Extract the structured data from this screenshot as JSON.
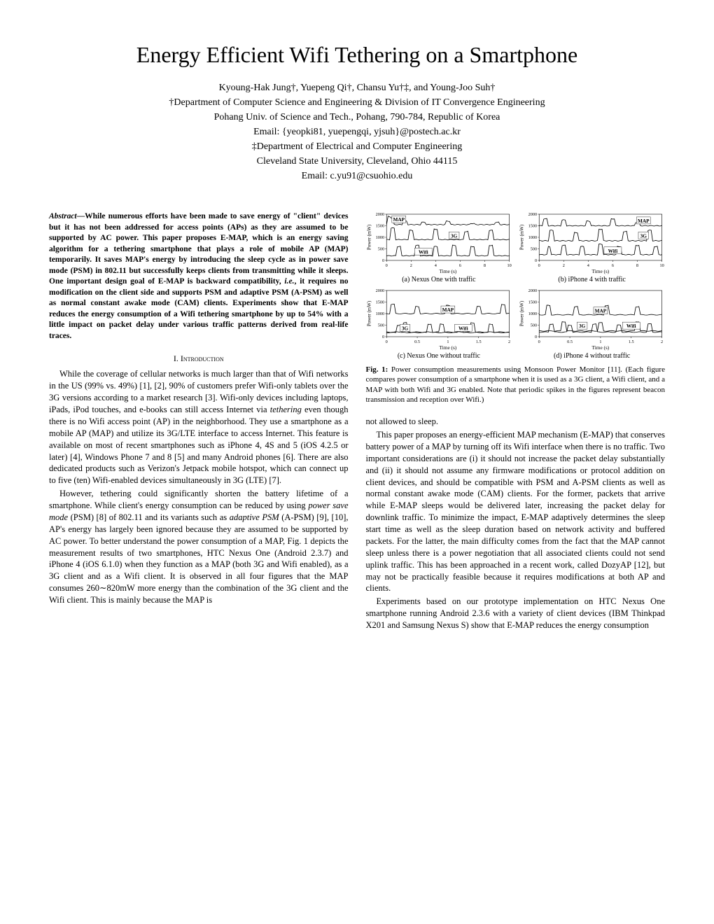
{
  "title": "Energy Efficient Wifi Tethering on a Smartphone",
  "authors_line1": "Kyoung-Hak Jung†, Yuepeng Qi†, Chansu Yu†‡, and Young-Joo Suh†",
  "authors_line2": "†Department of Computer Science and Engineering & Division of IT Convergence Engineering",
  "authors_line3": "Pohang Univ. of Science and Tech., Pohang, 790-784, Republic of Korea",
  "authors_line4": "Email: {yeopki81, yuepengqi, yjsuh}@postech.ac.kr",
  "authors_line5": "‡Department of Electrical and Computer Engineering",
  "authors_line6": "Cleveland State University, Cleveland, Ohio 44115",
  "authors_line7": "Email: c.yu91@csuohio.edu",
  "abstract_lead": "Abstract",
  "abstract_body": "—While numerous efforts have been made to save energy of \"client\" devices but it has not been addressed for access points (APs) as they are assumed to be supported by AC power. This paper proposes E-MAP, which is an energy saving algorithm for a tethering smartphone that plays a role of mobile AP (MAP) temporarily. It saves MAP's energy by introducing the sleep cycle as in power save mode (PSM) in 802.11 but successfully keeps clients from transmitting while it sleeps. One important design goal of E-MAP is backward compatibility, ",
  "abstract_ital": "i.e.",
  "abstract_body2": ", it requires no modification on the client side and supports PSM and adaptive PSM (A-PSM) as well as normal constant awake mode (CAM) clients. Experiments show that E-MAP reduces the energy consumption of a Wifi tethering smartphone by up to 54% with a little impact on packet delay under various traffic patterns derived from real-life traces.",
  "section1": "I. Introduction",
  "intro_p1a": "While the coverage of cellular networks is much larger than that of Wifi networks in the US (99% vs. 49%) [1], [2], 90% of customers prefer Wifi-only tablets over the 3G versions according to a market research [3]. Wifi-only devices including laptops, iPads, iPod touches, and e-books can still access Internet via ",
  "intro_p1_ital": "tethering",
  "intro_p1b": " even though there is no Wifi access point (AP) in the neighborhood. They use a smartphone as a mobile AP (MAP) and utilize its 3G/LTE interface to access Internet. This feature is available on most of recent smartphones such as iPhone 4, 4S and 5 (iOS 4.2.5 or later) [4], Windows Phone 7 and 8 [5] and many Android phones [6]. There are also dedicated products such as Verizon's Jetpack mobile hotspot, which can connect up to five (ten) Wifi-enabled devices simultaneously in 3G (LTE) [7].",
  "intro_p2a": "However, tethering could significantly shorten the battery lifetime of a smartphone. While client's energy consumption can be reduced by using ",
  "intro_p2_ital1": "power save mode",
  "intro_p2b": " (PSM) [8] of 802.11 and its variants such as ",
  "intro_p2_ital2": "adaptive PSM",
  "intro_p2c": " (A-PSM) [9], [10], AP's energy has largely been ignored because they are assumed to be supported by AC power. To better understand the power consumption of a MAP, Fig. 1 depicts the measurement results of two smartphones, HTC Nexus One (Android 2.3.7) and iPhone 4 (iOS 6.1.0) when they function as a MAP (both 3G and Wifi enabled), as a 3G client and as a Wifi client. It is observed in all four figures that the MAP consumes 260∼820mW more energy than the combination of the 3G client and the Wifi client. This is mainly because the MAP is",
  "col2_p0": "not allowed to sleep.",
  "col2_p1": "This paper proposes an energy-efficient MAP mechanism (E-MAP) that conserves battery power of a MAP by turning off its Wifi interface when there is no traffic. Two important considerations are (i) it should not increase the packet delay substantially and (ii) it should not assume any firmware modifications or protocol addition on client devices, and should be compatible with PSM and A-PSM clients as well as normal constant awake mode (CAM) clients. For the former, packets that arrive while E-MAP sleeps would be delivered later, increasing the packet delay for downlink traffic. To minimize the impact, E-MAP adaptively determines the sleep start time as well as the sleep duration based on network activity and buffered packets. For the latter, the main difficulty comes from the fact that the MAP cannot sleep unless there is a power negotiation that all associated clients could not send uplink traffic. This has been approached in a recent work, called DozyAP [12], but may not be practically feasible because it requires modifications at both AP and clients.",
  "col2_p2": "Experiments based on our prototype implementation on HTC Nexus One smartphone running Android 2.3.6 with a variety of client devices (IBM Thinkpad X201 and Samsung Nexus S) show that E-MAP reduces the energy consumption",
  "fig1_caption_bold": "Fig. 1:",
  "fig1_caption": " Power consumption measurements using Monsoon Power Monitor [11]. (Each figure compares power consumption of a smartphone when it is used as a 3G client, a Wifi client, and a MAP with both Wifi and 3G enabled. Note that periodic spikes in the figures represent beacon transmission and reception over Wifi.)",
  "subfigs": {
    "a": {
      "caption": "(a) Nexus One with traffic",
      "xlabel": "Time (s)",
      "ylabel": "Power (mW)",
      "xlim": [
        0,
        10
      ],
      "xticks": [
        0,
        2,
        4,
        6,
        8,
        10
      ],
      "ylim": [
        0,
        2000
      ],
      "yticks": [
        0,
        500,
        1000,
        1500,
        2000
      ],
      "labels": {
        "MAP": [
          1.0,
          1750
        ],
        "3G": [
          5.5,
          1050
        ],
        "Wifi": [
          3.0,
          350
        ]
      },
      "series": {
        "MAP": {
          "base": 1550,
          "spikes": [
            [
              0.2,
              1900
            ],
            [
              0.4,
              1850
            ],
            [
              1.5,
              1700
            ],
            [
              3.0,
              1650
            ],
            [
              5.0,
              1700
            ],
            [
              7.0,
              1600
            ],
            [
              9.0,
              1650
            ]
          ]
        },
        "3G": {
          "base": 900,
          "spikes": [
            [
              0.5,
              1400
            ],
            [
              2.0,
              1300
            ],
            [
              4.0,
              1350
            ],
            [
              6.5,
              1250
            ],
            [
              8.5,
              1300
            ]
          ]
        },
        "Wifi": {
          "base": 200,
          "spikes": [
            [
              1.0,
              600
            ],
            [
              2.5,
              650
            ],
            [
              4.0,
              600
            ],
            [
              5.5,
              650
            ],
            [
              7.0,
              600
            ],
            [
              8.5,
              650
            ]
          ]
        }
      }
    },
    "b": {
      "caption": "(b) iPhone 4 with traffic",
      "xlabel": "Time (s)",
      "ylabel": "Power (mW)",
      "xlim": [
        0,
        10
      ],
      "xticks": [
        0,
        2,
        4,
        6,
        8,
        10
      ],
      "ylim": [
        0,
        2000
      ],
      "yticks": [
        0,
        500,
        1000,
        1500,
        2000
      ],
      "labels": {
        "MAP": [
          8.5,
          1700
        ],
        "3G": [
          8.5,
          1050
        ],
        "Wifi": [
          6.0,
          400
        ]
      },
      "series": {
        "MAP": {
          "base": 1500,
          "spikes": [
            [
              0.5,
              1800
            ],
            [
              2.0,
              1750
            ],
            [
              4.0,
              1700
            ],
            [
              6.0,
              1800
            ],
            [
              8.0,
              1650
            ]
          ]
        },
        "3G": {
          "base": 850,
          "spikes": [
            [
              1.0,
              1300
            ],
            [
              3.0,
              1200
            ],
            [
              5.0,
              1350
            ],
            [
              7.0,
              1250
            ],
            [
              9.0,
              1300
            ]
          ]
        },
        "Wifi": {
          "base": 250,
          "spikes": [
            [
              0.8,
              600
            ],
            [
              2.0,
              650
            ],
            [
              3.5,
              600
            ],
            [
              5.0,
              700
            ],
            [
              6.5,
              600
            ],
            [
              8.0,
              650
            ],
            [
              9.5,
              600
            ]
          ]
        }
      }
    },
    "c": {
      "caption": "(c) Nexus One without traffic",
      "xlabel": "Time (s)",
      "ylabel": "Power (mW)",
      "xlim": [
        0.0,
        2.0
      ],
      "xticks": [
        0.0,
        0.5,
        1.0,
        1.5,
        2.0
      ],
      "ylim": [
        0,
        2000
      ],
      "yticks": [
        0,
        500,
        1000,
        1500,
        2000
      ],
      "labels": {
        "MAP": [
          1.0,
          1150
        ],
        "3G": [
          0.3,
          350
        ],
        "Wifi": [
          1.25,
          350
        ]
      },
      "series": {
        "MAP": {
          "base": 1000,
          "spikes": [
            [
              0.1,
              1400
            ],
            [
              0.5,
              1300
            ],
            [
              1.0,
              1350
            ],
            [
              1.5,
              1300
            ],
            [
              1.9,
              1400
            ]
          ]
        },
        "3G": {
          "base": 200,
          "spikes": [
            [
              0.3,
              600
            ],
            [
              0.9,
              550
            ],
            [
              1.4,
              600
            ]
          ]
        },
        "Wifi": {
          "base": 180,
          "spikes": [
            [
              0.2,
              500
            ],
            [
              0.7,
              550
            ],
            [
              1.2,
              500
            ],
            [
              1.7,
              550
            ]
          ]
        }
      }
    },
    "d": {
      "caption": "(d) iPhone 4 without traffic",
      "xlabel": "Time (s)",
      "ylabel": "Power (mW)",
      "xlim": [
        0.0,
        2.0
      ],
      "xticks": [
        0.0,
        0.5,
        1.0,
        1.5,
        2.0
      ],
      "ylim": [
        0,
        2000
      ],
      "yticks": [
        0,
        500,
        1000,
        1500,
        2000
      ],
      "labels": {
        "MAP": [
          1.0,
          1100
        ],
        "3G": [
          0.7,
          450
        ],
        "Wifi": [
          1.5,
          450
        ]
      },
      "series": {
        "MAP": {
          "base": 950,
          "spikes": [
            [
              0.15,
              1350
            ],
            [
              0.6,
              1300
            ],
            [
              1.1,
              1350
            ],
            [
              1.6,
              1300
            ]
          ]
        },
        "3G": {
          "base": 250,
          "spikes": [
            [
              0.4,
              650
            ],
            [
              1.0,
              600
            ],
            [
              1.6,
              650
            ]
          ]
        },
        "Wifi": {
          "base": 200,
          "spikes": [
            [
              0.2,
              550
            ],
            [
              0.5,
              500
            ],
            [
              0.9,
              550
            ],
            [
              1.3,
              500
            ],
            [
              1.8,
              550
            ]
          ]
        }
      }
    }
  },
  "chart_style": {
    "axis_color": "#000000",
    "line_color": "#000000",
    "line_width": 0.8,
    "tick_fontsize": 6,
    "label_fontsize": 7,
    "annot_fontsize": 7,
    "background": "#ffffff"
  }
}
